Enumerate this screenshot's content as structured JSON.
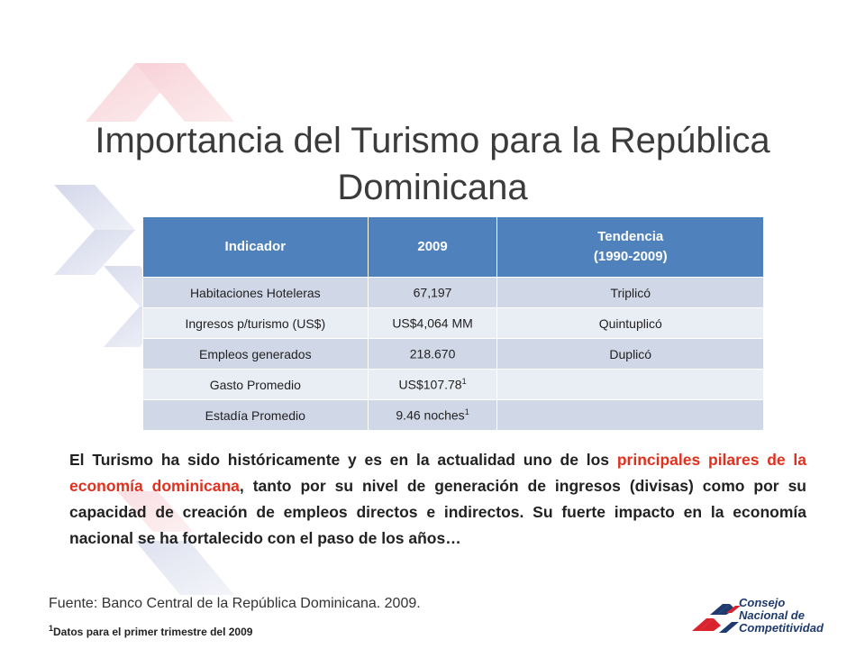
{
  "title": {
    "line1": "Importancia del Turismo para la República",
    "line2": "Dominicana"
  },
  "table": {
    "headers": {
      "indicator": "Indicador",
      "year": "2009",
      "trend_line1": "Tendencia",
      "trend_line2": "(1990-2009)"
    },
    "rows": [
      {
        "indicator": "Habitaciones Hoteleras",
        "value": "67,197",
        "sup": "",
        "trend": "Triplicó"
      },
      {
        "indicator": "Ingresos p/turismo (US$)",
        "value": "US$4,064 MM",
        "sup": "",
        "trend": "Quintuplicó"
      },
      {
        "indicator": "Empleos generados",
        "value": "218.670",
        "sup": "",
        "trend": "Duplicó"
      },
      {
        "indicator": "Gasto Promedio",
        "value": "US$107.78",
        "sup": "1",
        "trend": ""
      },
      {
        "indicator": "Estadía Promedio",
        "value": "9.46 noches",
        "sup": "1",
        "trend": ""
      }
    ]
  },
  "paragraph": {
    "part1": "El Turismo ha sido históricamente y es en la actualidad uno de los ",
    "highlight": "principales pilares de la economía dominicana",
    "part2": ", tanto por su nivel de generación de ingresos (divisas) como por su capacidad de creación de empleos directos e indirectos. Su fuerte impacto en la economía nacional se ha fortalecido con el paso de los años…"
  },
  "source": "Fuente: Banco Central de la República Dominicana. 2009.",
  "footnote": {
    "sup": "1",
    "text": "Datos para el primer trimestre del 2009"
  },
  "logo": {
    "line1": "Consejo",
    "line2": "Nacional de",
    "line3": "Competitividad"
  },
  "colors": {
    "header_blue": "#4f81bd",
    "row_band_dark": "#d0d8e8",
    "row_band_light": "#e9edf4",
    "highlight_red": "#e0301e"
  }
}
